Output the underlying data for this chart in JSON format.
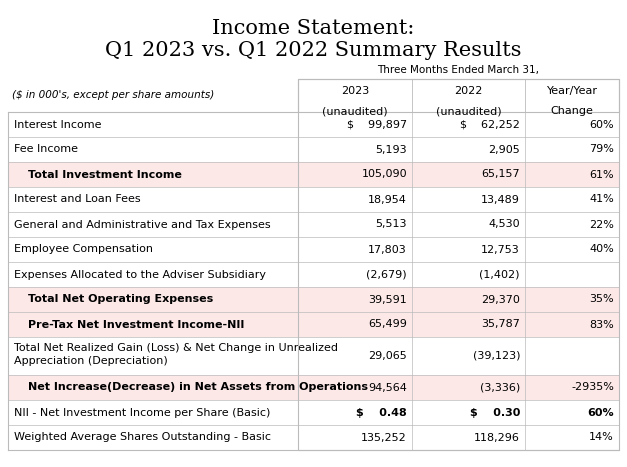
{
  "title_line1": "Income Statement:",
  "title_line2": "Q1 2023 vs. Q1 2022 Summary Results",
  "subtitle": "Three Months Ended March 31,",
  "col_header_row1": [
    "",
    "2023",
    "2022",
    "Year/Year"
  ],
  "col_header_row2": [
    "($ in 000's, except per share amounts)",
    "(unaudited)",
    "(unaudited)",
    "Change"
  ],
  "rows": [
    {
      "label": "Interest Income",
      "col1": "$    99,897",
      "col2": "$    62,252",
      "col3": "60%",
      "bold": false,
      "shaded": false,
      "multiline": false,
      "indent": false,
      "bold_nums": false
    },
    {
      "label": "Fee Income",
      "col1": "5,193",
      "col2": "2,905",
      "col3": "79%",
      "bold": false,
      "shaded": false,
      "multiline": false,
      "indent": false,
      "bold_nums": false
    },
    {
      "label": "Total Investment Income",
      "col1": "105,090",
      "col2": "65,157",
      "col3": "61%",
      "bold": true,
      "shaded": true,
      "multiline": false,
      "indent": true,
      "bold_nums": false
    },
    {
      "label": "Interest and Loan Fees",
      "col1": "18,954",
      "col2": "13,489",
      "col3": "41%",
      "bold": false,
      "shaded": false,
      "multiline": false,
      "indent": false,
      "bold_nums": false
    },
    {
      "label": "General and Administrative and Tax Expenses",
      "col1": "5,513",
      "col2": "4,530",
      "col3": "22%",
      "bold": false,
      "shaded": false,
      "multiline": false,
      "indent": false,
      "bold_nums": false
    },
    {
      "label": "Employee Compensation",
      "col1": "17,803",
      "col2": "12,753",
      "col3": "40%",
      "bold": false,
      "shaded": false,
      "multiline": false,
      "indent": false,
      "bold_nums": false
    },
    {
      "label": "Expenses Allocated to the Adviser Subsidiary",
      "col1": "(2,679)",
      "col2": "(1,402)",
      "col3": "",
      "bold": false,
      "shaded": false,
      "multiline": false,
      "indent": false,
      "bold_nums": false
    },
    {
      "label": "Total Net Operating Expenses",
      "col1": "39,591",
      "col2": "29,370",
      "col3": "35%",
      "bold": true,
      "shaded": true,
      "multiline": false,
      "indent": true,
      "bold_nums": false
    },
    {
      "label": "Pre-Tax Net Investment Income-NII",
      "col1": "65,499",
      "col2": "35,787",
      "col3": "83%",
      "bold": true,
      "shaded": true,
      "multiline": false,
      "indent": true,
      "bold_nums": false
    },
    {
      "label": "Total Net Realized Gain (Loss) & Net Change in Unrealized\nAppreciation (Depreciation)",
      "col1": "29,065",
      "col2": "(39,123)",
      "col3": "",
      "bold": false,
      "shaded": false,
      "multiline": true,
      "indent": false,
      "bold_nums": false
    },
    {
      "label": "Net Increase(Decrease) in Net Assets from Operations",
      "col1": "94,564",
      "col2": "(3,336)",
      "col3": "-2935%",
      "bold": true,
      "shaded": true,
      "multiline": false,
      "indent": true,
      "bold_nums": false
    },
    {
      "label": "NII - Net Investment Income per Share (Basic)",
      "col1": "$    0.48",
      "col2": "$    0.30",
      "col3": "60%",
      "bold": false,
      "shaded": false,
      "multiline": false,
      "indent": false,
      "bold_nums": true
    },
    {
      "label": "Weighted Average Shares Outstanding - Basic",
      "col1": "135,252",
      "col2": "118,296",
      "col3": "14%",
      "bold": false,
      "shaded": false,
      "multiline": false,
      "indent": false,
      "bold_nums": false
    }
  ],
  "shaded_color": "#fde8e8",
  "border_color": "#bbbbbb",
  "title_font_size": 15,
  "header_font_size": 8,
  "body_font_size": 8,
  "background_color": "#ffffff"
}
